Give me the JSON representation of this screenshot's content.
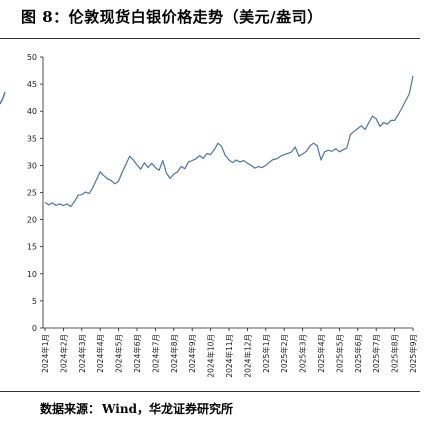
{
  "figure": {
    "title": "图 8：伦敦现货白银价格走势（美元/盎司）",
    "source_label": "数据来源：",
    "source_value": "Wind，华龙证券研究所"
  },
  "colors": {
    "line": "#4a76a8",
    "axis": "#222222",
    "rule": "#333333"
  },
  "chart_data": {
    "type": "line",
    "title": "",
    "xlabel": "",
    "ylabel": "",
    "ylim": [
      0,
      50
    ],
    "yticks": [
      0,
      5,
      10,
      15,
      20,
      25,
      30,
      35,
      40,
      45,
      50
    ],
    "grid": false,
    "legend": "none",
    "xticks": [
      "2024年1月",
      "2024年2月",
      "2024年3月",
      "2024年4月",
      "2024年5月",
      "2024年6月",
      "2024年7月",
      "2024年8月",
      "2024年9月",
      "2024年10月",
      "2024年11月",
      "2024年12月",
      "2025年1月",
      "2025年2月",
      "2025年3月",
      "2025年4月",
      "2025年5月",
      "2025年6月",
      "2025年7月",
      "2025年8月",
      "2025年9月"
    ],
    "series": [
      {
        "values": [
          [
            0.0,
            23.2
          ],
          [
            0.2,
            22.7
          ],
          [
            0.4,
            23.1
          ],
          [
            0.6,
            22.6
          ],
          [
            0.8,
            22.9
          ],
          [
            1.0,
            22.6
          ],
          [
            1.2,
            22.9
          ],
          [
            1.4,
            22.4
          ],
          [
            1.6,
            23.3
          ],
          [
            1.8,
            24.5
          ],
          [
            2.0,
            24.6
          ],
          [
            2.2,
            25.1
          ],
          [
            2.4,
            24.8
          ],
          [
            2.6,
            25.9
          ],
          [
            2.8,
            27.4
          ],
          [
            3.0,
            28.8
          ],
          [
            3.2,
            28.1
          ],
          [
            3.4,
            27.5
          ],
          [
            3.6,
            27.2
          ],
          [
            3.8,
            26.6
          ],
          [
            4.0,
            27.1
          ],
          [
            4.2,
            28.8
          ],
          [
            4.4,
            30.2
          ],
          [
            4.6,
            31.7
          ],
          [
            4.8,
            31.0
          ],
          [
            5.0,
            30.1
          ],
          [
            5.2,
            29.3
          ],
          [
            5.4,
            30.5
          ],
          [
            5.6,
            29.6
          ],
          [
            5.8,
            30.4
          ],
          [
            6.0,
            29.6
          ],
          [
            6.2,
            29.1
          ],
          [
            6.4,
            30.9
          ],
          [
            6.6,
            28.6
          ],
          [
            6.8,
            27.6
          ],
          [
            7.0,
            28.4
          ],
          [
            7.2,
            28.8
          ],
          [
            7.4,
            29.8
          ],
          [
            7.6,
            29.4
          ],
          [
            7.8,
            30.6
          ],
          [
            8.0,
            30.9
          ],
          [
            8.2,
            31.2
          ],
          [
            8.4,
            31.8
          ],
          [
            8.6,
            31.3
          ],
          [
            8.8,
            32.2
          ],
          [
            9.0,
            32.0
          ],
          [
            9.2,
            32.9
          ],
          [
            9.4,
            34.1
          ],
          [
            9.6,
            33.5
          ],
          [
            9.8,
            31.8
          ],
          [
            10.0,
            31.0
          ],
          [
            10.2,
            30.5
          ],
          [
            10.4,
            31.0
          ],
          [
            10.6,
            30.6
          ],
          [
            10.8,
            30.9
          ],
          [
            11.0,
            30.4
          ],
          [
            11.2,
            30.0
          ],
          [
            11.4,
            29.5
          ],
          [
            11.6,
            29.8
          ],
          [
            11.8,
            29.6
          ],
          [
            12.0,
            30.0
          ],
          [
            12.2,
            30.6
          ],
          [
            12.4,
            31.1
          ],
          [
            12.6,
            31.2
          ],
          [
            12.8,
            31.7
          ],
          [
            13.0,
            32.0
          ],
          [
            13.2,
            32.2
          ],
          [
            13.4,
            32.5
          ],
          [
            13.6,
            33.4
          ],
          [
            13.8,
            31.7
          ],
          [
            14.0,
            32.1
          ],
          [
            14.2,
            32.6
          ],
          [
            14.4,
            33.6
          ],
          [
            14.6,
            34.1
          ],
          [
            14.8,
            33.6
          ],
          [
            15.0,
            31.0
          ],
          [
            15.2,
            32.5
          ],
          [
            15.4,
            32.8
          ],
          [
            15.6,
            32.6
          ],
          [
            15.8,
            33.1
          ],
          [
            16.0,
            32.5
          ],
          [
            16.2,
            32.9
          ],
          [
            16.4,
            33.2
          ],
          [
            16.6,
            35.7
          ],
          [
            16.8,
            36.3
          ],
          [
            17.0,
            36.8
          ],
          [
            17.2,
            37.3
          ],
          [
            17.4,
            36.6
          ],
          [
            17.6,
            37.9
          ],
          [
            17.8,
            39.1
          ],
          [
            18.0,
            38.6
          ],
          [
            18.2,
            37.2
          ],
          [
            18.4,
            37.9
          ],
          [
            18.6,
            37.6
          ],
          [
            18.8,
            38.3
          ],
          [
            19.0,
            38.3
          ],
          [
            19.2,
            39.4
          ],
          [
            19.4,
            40.6
          ],
          [
            19.6,
            41.9
          ],
          [
            19.8,
            43.2
          ],
          [
            20.0,
            46.5
          ]
        ]
      }
    ]
  }
}
